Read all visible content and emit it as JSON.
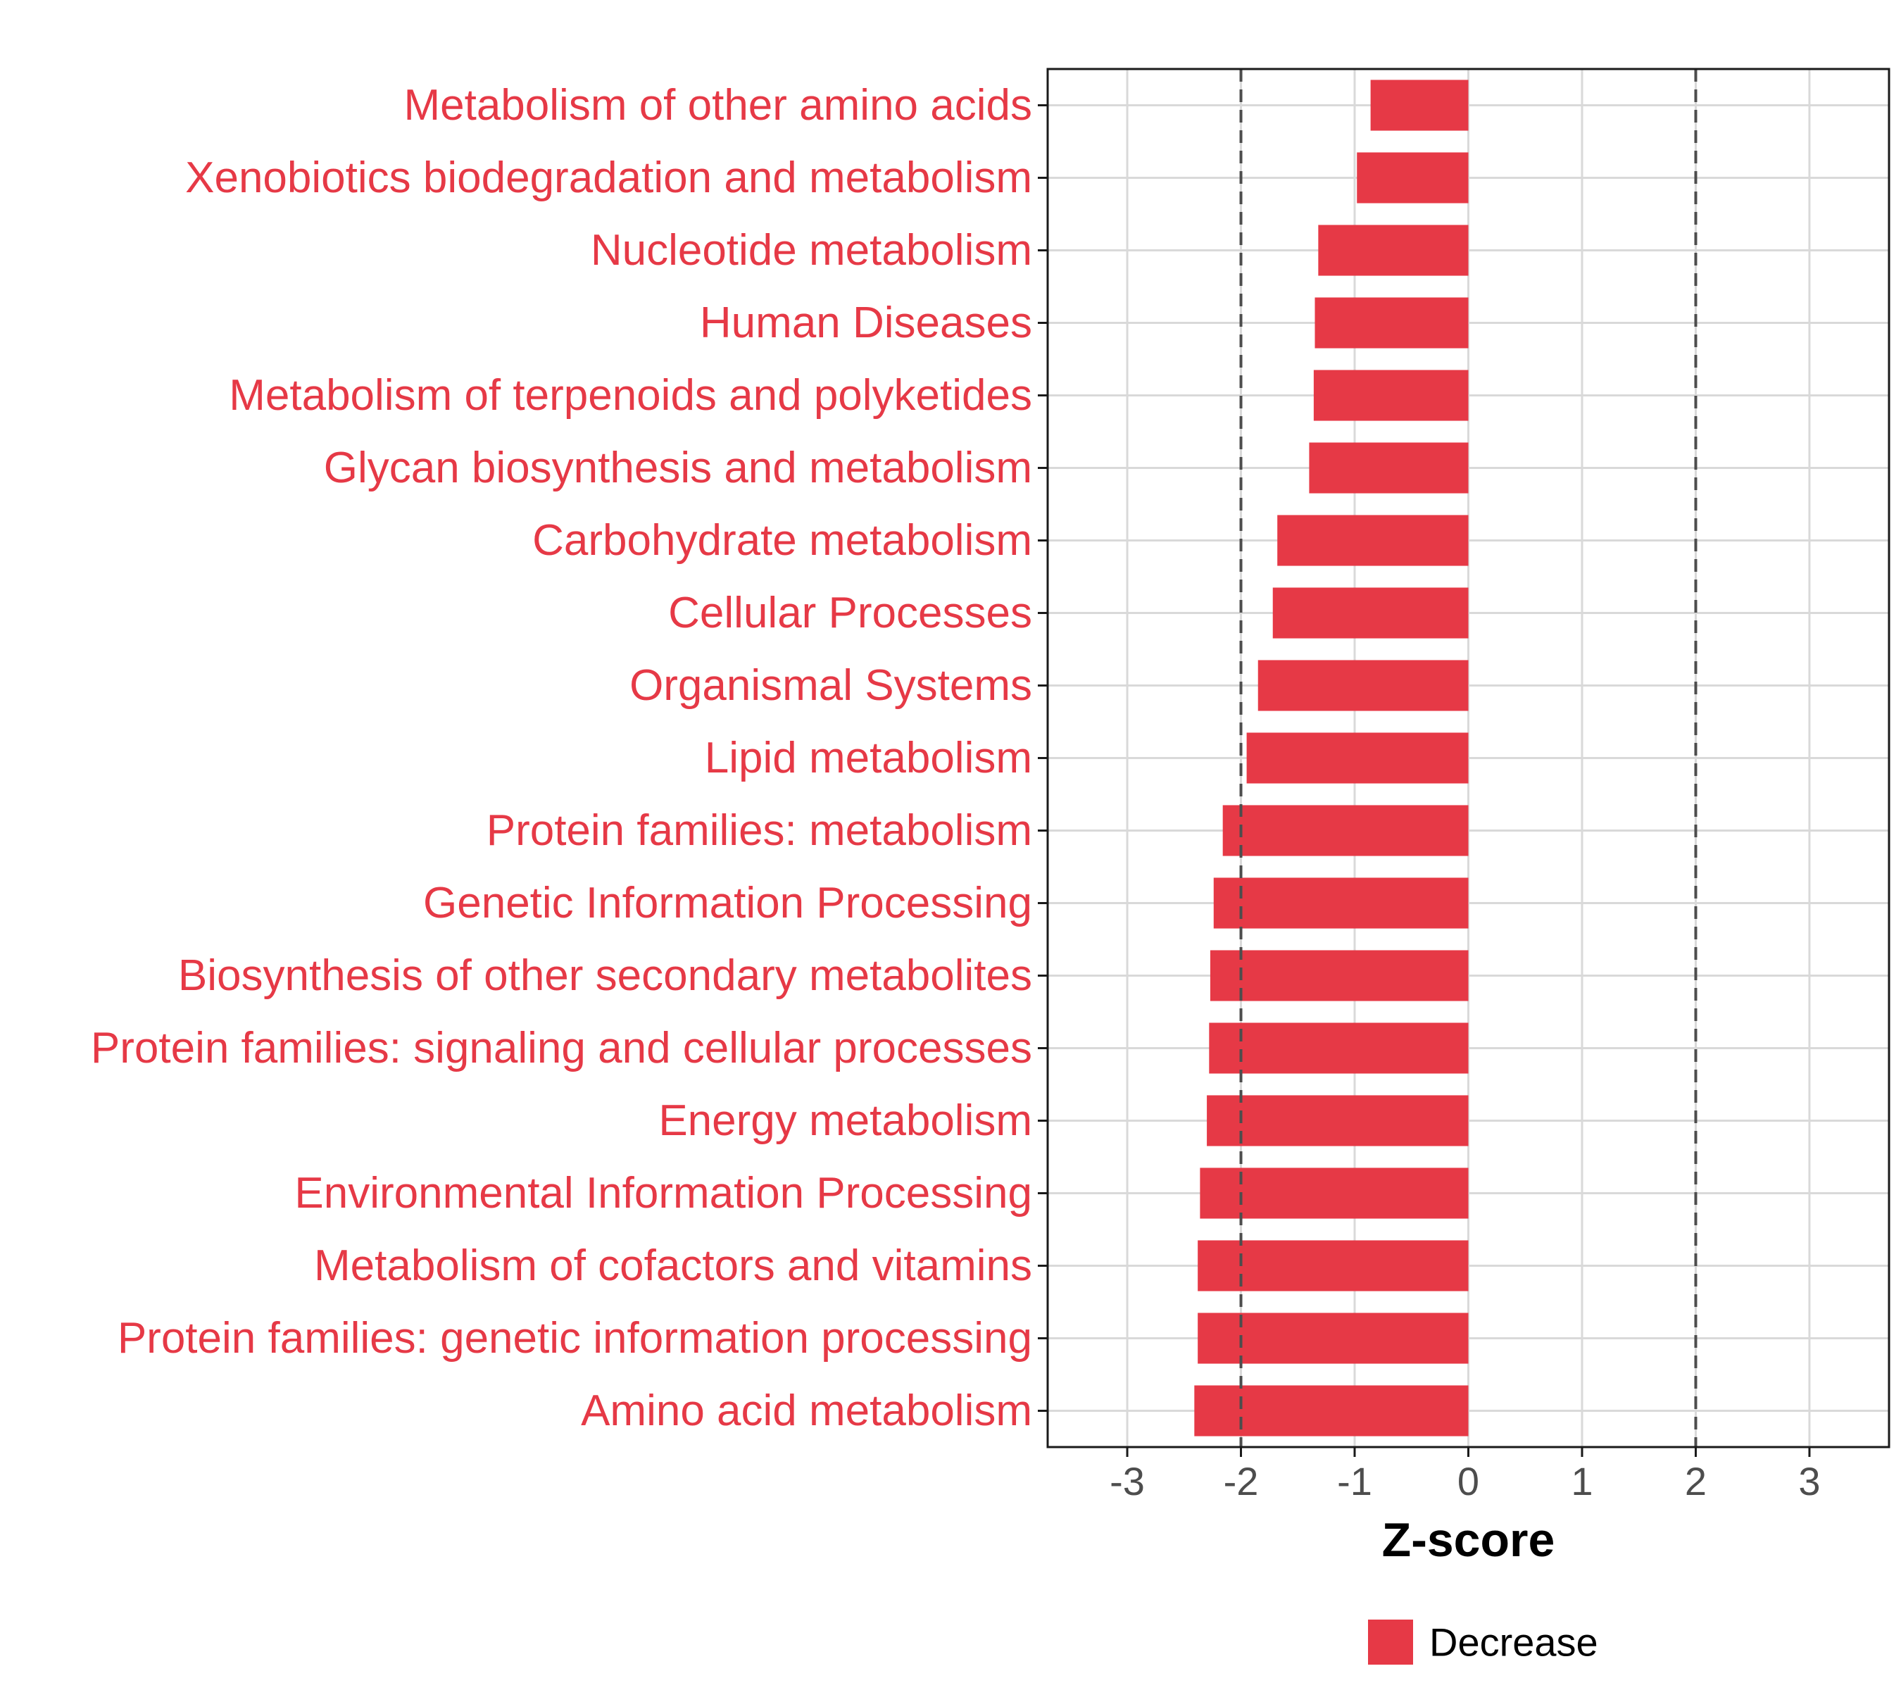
{
  "chart_data": {
    "type": "bar",
    "orientation": "horizontal",
    "categories": [
      "Metabolism of other amino acids",
      "Xenobiotics biodegradation and metabolism",
      "Nucleotide metabolism",
      "Human Diseases",
      "Metabolism of terpenoids and polyketides",
      "Glycan biosynthesis and metabolism",
      "Carbohydrate metabolism",
      "Cellular Processes",
      "Organismal Systems",
      "Lipid metabolism",
      "Protein families: metabolism",
      "Genetic Information Processing",
      "Biosynthesis of other secondary metabolites",
      "Protein families: signaling and cellular processes",
      "Energy metabolism",
      "Environmental Information Processing",
      "Metabolism of cofactors and vitamins",
      "Protein families: genetic information processing",
      "Amino acid metabolism"
    ],
    "values": [
      -0.86,
      -0.98,
      -1.32,
      -1.35,
      -1.36,
      -1.4,
      -1.68,
      -1.72,
      -1.85,
      -1.95,
      -2.16,
      -2.24,
      -2.27,
      -2.28,
      -2.3,
      -2.36,
      -2.38,
      -2.38,
      -2.41
    ],
    "series_name": "Decrease",
    "xlabel": "Z-score",
    "ylabel": "",
    "xlim": [
      -3.7,
      3.7
    ],
    "xticks": [
      -3,
      -2,
      -1,
      0,
      1,
      2,
      3
    ],
    "reference_lines": [
      -2,
      2
    ],
    "grid": true,
    "legend_position": "bottom"
  },
  "colors": {
    "bar": "#e63946",
    "label": "#e63946",
    "grid": "#d9d9d9",
    "ref_line": "#4d4d4d",
    "frame": "#1a1a1a"
  }
}
